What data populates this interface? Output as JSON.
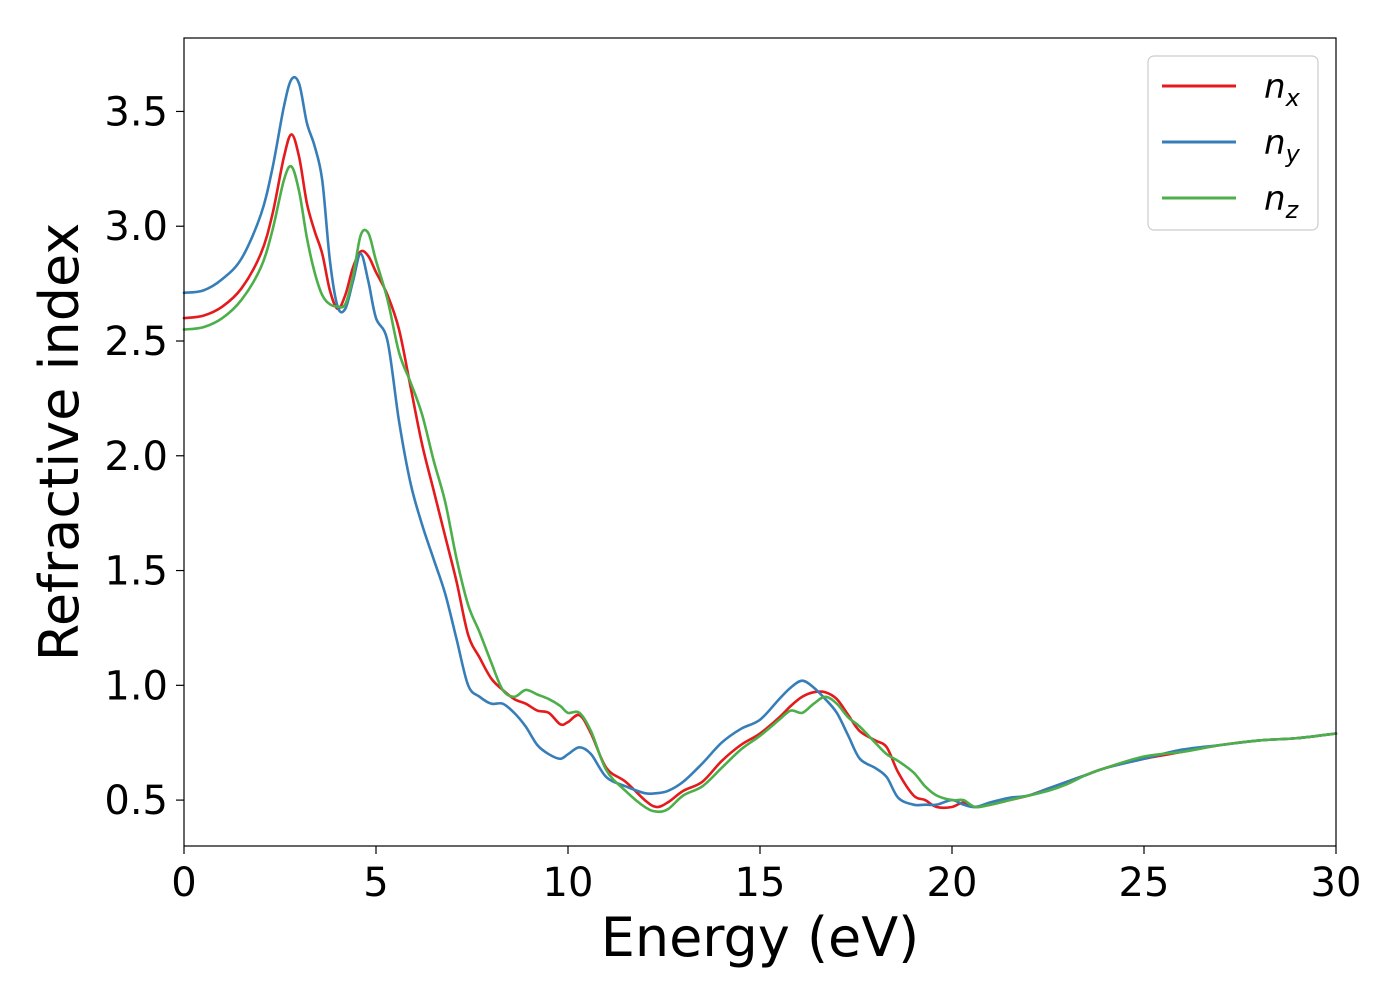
{
  "chart_data": {
    "type": "line",
    "title": "",
    "xlabel": "Energy (eV)",
    "ylabel": "Refractive index",
    "xlim": [
      0,
      30
    ],
    "ylim": [
      0.3,
      3.82
    ],
    "xticks": [
      0,
      5,
      10,
      15,
      20,
      25,
      30
    ],
    "yticks": [
      0.5,
      1.0,
      1.5,
      2.0,
      2.5,
      3.0,
      3.5
    ],
    "xtick_labels": [
      "0",
      "5",
      "10",
      "15",
      "20",
      "25",
      "30"
    ],
    "ytick_labels": [
      "0.5",
      "1.0",
      "1.5",
      "2.0",
      "2.5",
      "3.0",
      "3.5"
    ],
    "grid": false,
    "legend_position": "top-right",
    "series": [
      {
        "name": "n",
        "sub": "x",
        "color": "#e41a1c",
        "x": [
          0,
          0.5,
          1.0,
          1.5,
          2.0,
          2.3,
          2.6,
          2.8,
          3.0,
          3.2,
          3.4,
          3.6,
          3.8,
          4.0,
          4.2,
          4.4,
          4.6,
          4.8,
          5.0,
          5.3,
          5.6,
          5.9,
          6.2,
          6.5,
          6.8,
          7.1,
          7.4,
          7.7,
          8.0,
          8.3,
          8.6,
          8.9,
          9.2,
          9.5,
          9.8,
          10.0,
          10.3,
          10.6,
          11.0,
          11.5,
          12.0,
          12.3,
          12.6,
          13.0,
          13.5,
          14.0,
          14.5,
          15.0,
          15.5,
          15.8,
          16.1,
          16.4,
          16.7,
          17.0,
          17.3,
          17.6,
          18.0,
          18.3,
          18.6,
          19.0,
          19.3,
          19.6,
          20.0,
          20.3,
          20.6,
          21.0,
          21.5,
          22.0,
          22.5,
          23.0,
          23.5,
          24.0,
          25.0,
          26.0,
          27.0,
          28.0,
          29.0,
          30.0
        ],
        "y": [
          2.6,
          2.61,
          2.65,
          2.73,
          2.88,
          3.05,
          3.3,
          3.4,
          3.3,
          3.1,
          2.98,
          2.88,
          2.72,
          2.64,
          2.7,
          2.82,
          2.89,
          2.87,
          2.8,
          2.7,
          2.55,
          2.3,
          2.05,
          1.85,
          1.65,
          1.45,
          1.22,
          1.12,
          1.03,
          0.98,
          0.94,
          0.92,
          0.89,
          0.88,
          0.83,
          0.84,
          0.87,
          0.79,
          0.64,
          0.58,
          0.5,
          0.47,
          0.49,
          0.54,
          0.58,
          0.67,
          0.74,
          0.79,
          0.86,
          0.91,
          0.95,
          0.97,
          0.97,
          0.94,
          0.87,
          0.8,
          0.76,
          0.73,
          0.62,
          0.52,
          0.5,
          0.47,
          0.47,
          0.49,
          0.47,
          0.48,
          0.5,
          0.52,
          0.55,
          0.58,
          0.61,
          0.64,
          0.68,
          0.71,
          0.74,
          0.76,
          0.77,
          0.79
        ]
      },
      {
        "name": "n",
        "sub": "y",
        "color": "#377eb8",
        "x": [
          0,
          0.5,
          1.0,
          1.5,
          2.0,
          2.3,
          2.6,
          2.8,
          3.0,
          3.2,
          3.4,
          3.6,
          3.8,
          4.0,
          4.2,
          4.4,
          4.6,
          4.8,
          5.0,
          5.3,
          5.6,
          5.9,
          6.2,
          6.5,
          6.8,
          7.1,
          7.4,
          7.7,
          8.0,
          8.3,
          8.6,
          8.9,
          9.2,
          9.5,
          9.8,
          10.0,
          10.3,
          10.6,
          11.0,
          11.5,
          12.0,
          12.3,
          12.6,
          13.0,
          13.5,
          14.0,
          14.5,
          15.0,
          15.5,
          15.8,
          16.1,
          16.4,
          16.7,
          17.0,
          17.3,
          17.6,
          18.0,
          18.3,
          18.6,
          19.0,
          19.3,
          19.6,
          20.0,
          20.3,
          20.6,
          21.0,
          21.5,
          22.0,
          22.5,
          23.0,
          23.5,
          24.0,
          25.0,
          26.0,
          27.0,
          28.0,
          29.0,
          30.0
        ],
        "y": [
          2.71,
          2.72,
          2.77,
          2.86,
          3.05,
          3.25,
          3.52,
          3.64,
          3.62,
          3.45,
          3.35,
          3.2,
          2.85,
          2.65,
          2.64,
          2.76,
          2.88,
          2.76,
          2.6,
          2.5,
          2.15,
          1.88,
          1.7,
          1.55,
          1.4,
          1.2,
          1.0,
          0.95,
          0.92,
          0.92,
          0.88,
          0.82,
          0.74,
          0.7,
          0.68,
          0.7,
          0.73,
          0.7,
          0.6,
          0.56,
          0.53,
          0.53,
          0.54,
          0.58,
          0.66,
          0.75,
          0.81,
          0.85,
          0.94,
          0.99,
          1.02,
          0.99,
          0.94,
          0.88,
          0.78,
          0.68,
          0.64,
          0.6,
          0.51,
          0.48,
          0.48,
          0.48,
          0.5,
          0.48,
          0.47,
          0.49,
          0.51,
          0.52,
          0.55,
          0.58,
          0.61,
          0.64,
          0.68,
          0.72,
          0.74,
          0.76,
          0.77,
          0.79
        ]
      },
      {
        "name": "n",
        "sub": "z",
        "color": "#4daf4a",
        "x": [
          0,
          0.5,
          1.0,
          1.5,
          2.0,
          2.3,
          2.6,
          2.8,
          3.0,
          3.2,
          3.4,
          3.6,
          3.8,
          4.0,
          4.2,
          4.4,
          4.6,
          4.8,
          5.0,
          5.3,
          5.6,
          5.9,
          6.2,
          6.5,
          6.8,
          7.1,
          7.4,
          7.7,
          8.0,
          8.3,
          8.6,
          8.9,
          9.2,
          9.5,
          9.8,
          10.0,
          10.3,
          10.6,
          11.0,
          11.5,
          12.0,
          12.3,
          12.6,
          13.0,
          13.5,
          14.0,
          14.5,
          15.0,
          15.5,
          15.8,
          16.1,
          16.4,
          16.7,
          17.0,
          17.3,
          17.6,
          18.0,
          18.3,
          18.6,
          19.0,
          19.3,
          19.6,
          20.0,
          20.3,
          20.6,
          21.0,
          21.5,
          22.0,
          22.5,
          23.0,
          23.5,
          24.0,
          25.0,
          26.0,
          27.0,
          28.0,
          29.0,
          30.0
        ],
        "y": [
          2.55,
          2.56,
          2.6,
          2.68,
          2.82,
          2.98,
          3.2,
          3.26,
          3.15,
          2.95,
          2.8,
          2.7,
          2.66,
          2.65,
          2.66,
          2.78,
          2.96,
          2.97,
          2.85,
          2.68,
          2.45,
          2.32,
          2.18,
          1.98,
          1.8,
          1.55,
          1.35,
          1.23,
          1.1,
          0.98,
          0.95,
          0.98,
          0.96,
          0.94,
          0.91,
          0.88,
          0.88,
          0.8,
          0.63,
          0.54,
          0.47,
          0.45,
          0.46,
          0.52,
          0.56,
          0.64,
          0.72,
          0.78,
          0.85,
          0.89,
          0.88,
          0.92,
          0.95,
          0.92,
          0.86,
          0.82,
          0.75,
          0.7,
          0.67,
          0.62,
          0.56,
          0.52,
          0.5,
          0.5,
          0.47,
          0.48,
          0.5,
          0.52,
          0.54,
          0.57,
          0.61,
          0.64,
          0.69,
          0.71,
          0.74,
          0.76,
          0.77,
          0.79
        ]
      }
    ]
  }
}
